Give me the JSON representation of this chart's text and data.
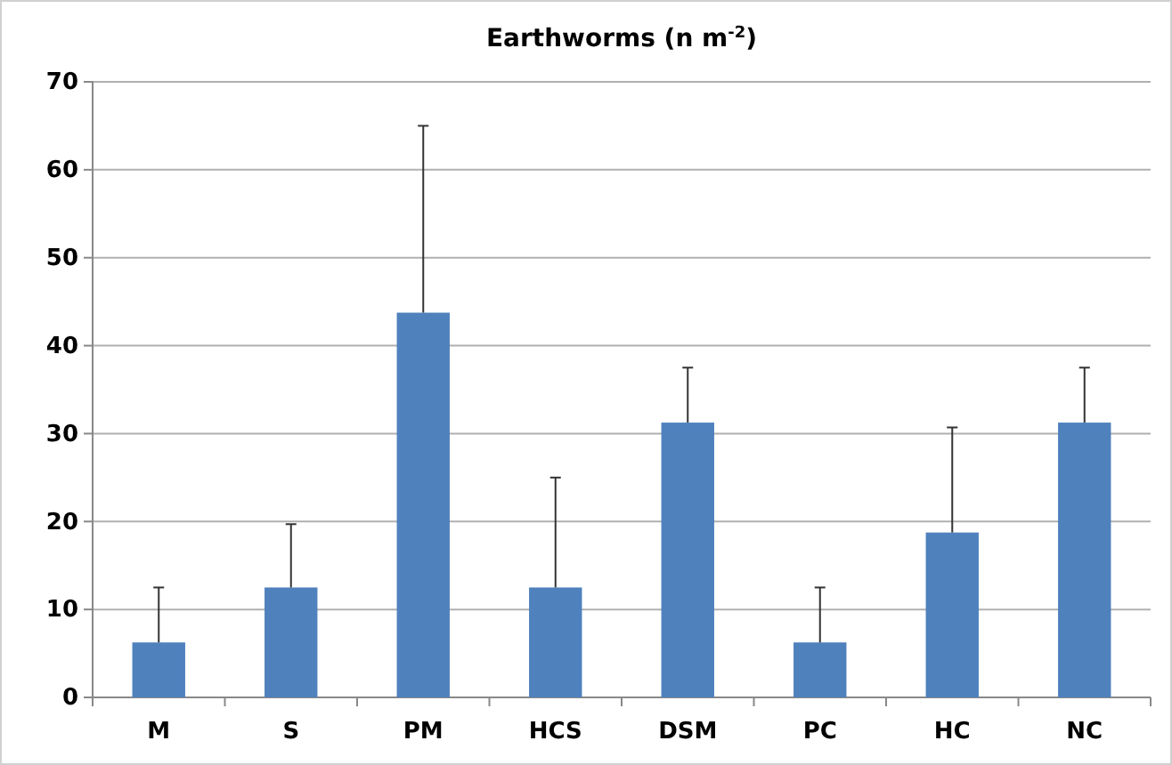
{
  "chart_data": {
    "type": "bar",
    "title": "Earthworms (n m$^{-2}$)",
    "categories": [
      "M",
      "S",
      "PM",
      "HCS",
      "DSM",
      "PC",
      "HC",
      "NC"
    ],
    "values": [
      6.25,
      12.5,
      43.75,
      12.5,
      31.25,
      6.25,
      18.75,
      31.25
    ],
    "errors": [
      [
        6.25,
        12.5
      ],
      [
        12.5,
        19.7
      ],
      [
        43.75,
        65
      ],
      [
        12.5,
        25
      ],
      [
        31.25,
        37.5
      ],
      [
        6.25,
        12.5
      ],
      [
        18.75,
        30.7
      ],
      [
        31.25,
        37.5
      ]
    ],
    "color": "#4f81bd",
    "ylim": [
      0,
      70
    ],
    "yticks": [
      0,
      10,
      20,
      30,
      40,
      50,
      60,
      70
    ],
    "grid": "y"
  }
}
